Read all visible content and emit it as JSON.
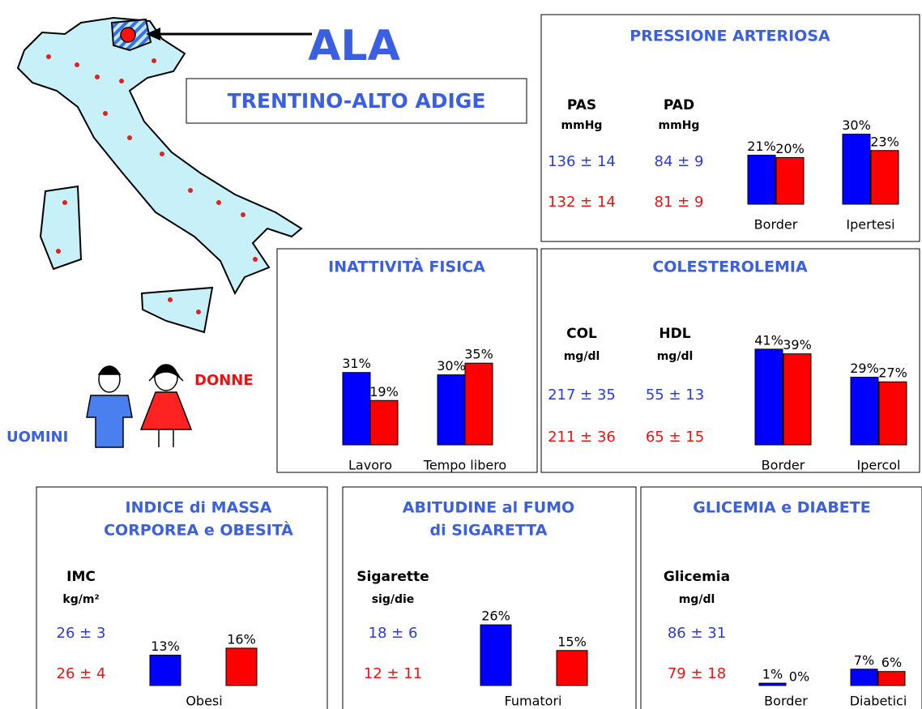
{
  "header": {
    "region": "ALA",
    "subtitle": "TRENTINO-ALTO ADIGE",
    "men": "UOMINI",
    "women": "DONNE"
  },
  "panels": [
    {
      "title": [
        "PRESSIONE ARTERIOSA"
      ],
      "measures": [
        {
          "name": "PAS",
          "unit": "mmHg",
          "men": "136 ± 14",
          "women": "132 ± 14"
        },
        {
          "name": "PAD",
          "unit": "mmHg",
          "men": "84 ± 9",
          "women": "81 ± 9"
        }
      ],
      "categories": [
        "Border",
        "Ipertesi"
      ],
      "series": [
        {
          "color": "#0000ff",
          "values": [
            21,
            30
          ],
          "value_labels": [
            "21%",
            "30%"
          ]
        },
        {
          "color": "#ff0000",
          "values": [
            20,
            23
          ],
          "value_labels": [
            "20%",
            "23%"
          ]
        }
      ]
    },
    {
      "title": [
        "INATTIVITÀ FISICA"
      ],
      "measures": [],
      "categories": [
        "Lavoro",
        "Tempo libero"
      ],
      "series": [
        {
          "color": "#0000ff",
          "values": [
            31,
            30
          ],
          "value_labels": [
            "31%",
            "30%"
          ]
        },
        {
          "color": "#ff0000",
          "values": [
            19,
            35
          ],
          "value_labels": [
            "19%",
            "35%"
          ]
        }
      ]
    },
    {
      "title": [
        "COLESTEROLEMIA"
      ],
      "measures": [
        {
          "name": "COL",
          "unit": "mg/dl",
          "men": "217 ± 35",
          "women": "211 ± 36"
        },
        {
          "name": "HDL",
          "unit": "mg/dl",
          "men": "55 ± 13",
          "women": "65 ± 15"
        }
      ],
      "categories": [
        "Border",
        "Ipercol"
      ],
      "series": [
        {
          "color": "#0000ff",
          "values": [
            41,
            29
          ],
          "value_labels": [
            "41%",
            "29%"
          ]
        },
        {
          "color": "#ff0000",
          "values": [
            39,
            27
          ],
          "value_labels": [
            "39%",
            "27%"
          ]
        }
      ]
    },
    {
      "title": [
        "INDICE di MASSA",
        "CORPOREA e OBESITÀ"
      ],
      "measures": [
        {
          "name": "IMC",
          "unit": "kg/m²",
          "men": "26 ± 3",
          "women": "26 ± 4"
        }
      ],
      "categories": [
        "Obesi"
      ],
      "series": [
        {
          "color": "#0000ff",
          "values": [
            13
          ],
          "value_labels": [
            "13%"
          ]
        },
        {
          "color": "#ff0000",
          "values": [
            16
          ],
          "value_labels": [
            "16%"
          ]
        }
      ]
    },
    {
      "title": [
        "ABITUDINE al FUMO",
        "di SIGARETTA"
      ],
      "measures": [
        {
          "name": "Sigarette",
          "unit": "sig/die",
          "men": "18 ± 6",
          "women": "12 ± 11"
        }
      ],
      "categories": [
        "Fumatori"
      ],
      "series": [
        {
          "color": "#0000ff",
          "values": [
            26
          ],
          "value_labels": [
            "26%"
          ]
        },
        {
          "color": "#ff0000",
          "values": [
            15
          ],
          "value_labels": [
            "15%"
          ]
        }
      ]
    },
    {
      "title": [
        "GLICEMIA e DIABETE"
      ],
      "measures": [
        {
          "name": "Glicemia",
          "unit": "mg/dl",
          "men": "86 ± 31",
          "women": "79 ± 18"
        }
      ],
      "categories": [
        "Border",
        "Diabetici"
      ],
      "series": [
        {
          "color": "#0000ff",
          "values": [
            1,
            7
          ],
          "value_labels": [
            "1%",
            "7%"
          ]
        },
        {
          "color": "#ff0000",
          "values": [
            0,
            6
          ],
          "value_labels": [
            "0%",
            "6%"
          ]
        }
      ]
    }
  ]
}
